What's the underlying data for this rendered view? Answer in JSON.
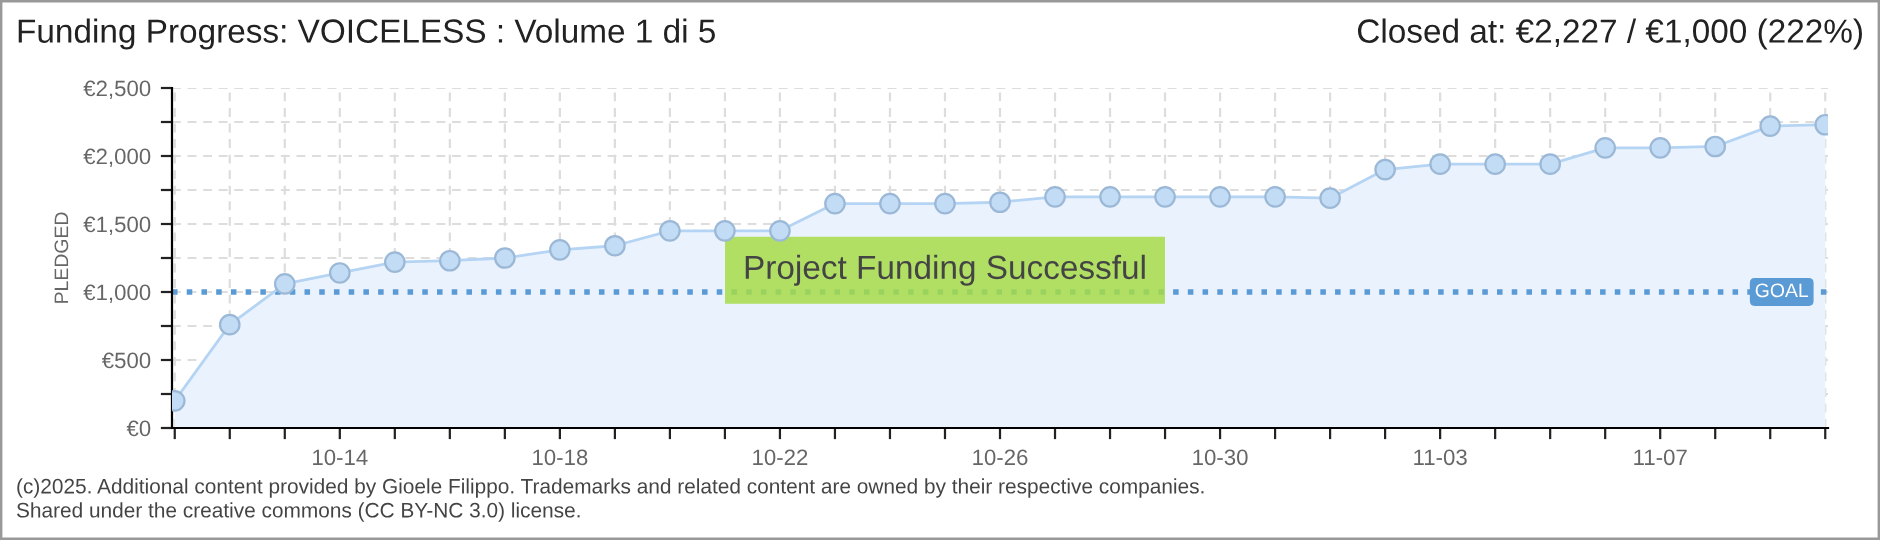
{
  "chart_data": {
    "type": "area",
    "title": "Funding Progress: VOICELESS : Volume 1 di 5",
    "subtitle": "Closed at: €2,227 / €1,000 (222%)",
    "ylabel": "PLEDGED",
    "categories": [
      null,
      null,
      null,
      "10-14",
      null,
      null,
      null,
      "10-18",
      null,
      null,
      null,
      "10-22",
      null,
      null,
      null,
      "10-26",
      null,
      null,
      null,
      "10-30",
      null,
      null,
      null,
      "11-03",
      null,
      null,
      null,
      "11-07",
      null,
      null,
      null
    ],
    "series": [
      {
        "color": "#b5d4f4",
        "values": [
          200,
          760,
          1060,
          1140,
          1220,
          1230,
          1250,
          1310,
          1340,
          1450,
          1450,
          1450,
          1650,
          1650,
          1650,
          1660,
          1700,
          1700,
          1700,
          1700,
          1700,
          1690,
          1900,
          1940,
          1940,
          1940,
          2060,
          2060,
          2070,
          2220,
          2230
        ]
      }
    ],
    "ylim": [
      0,
      2500
    ],
    "yticks": [
      {
        "value": 0,
        "label": "€0"
      },
      {
        "value": 250,
        "label": null
      },
      {
        "value": 500,
        "label": "€500"
      },
      {
        "value": 750,
        "label": null
      },
      {
        "value": 1000,
        "label": "€1,000"
      },
      {
        "value": 1250,
        "label": null
      },
      {
        "value": 1500,
        "label": "€1,500"
      },
      {
        "value": 1750,
        "label": null
      },
      {
        "value": 2000,
        "label": "€2,000"
      },
      {
        "value": 2250,
        "label": null
      },
      {
        "value": 2500,
        "label": "€2,500"
      }
    ],
    "ref_lines": [
      {
        "axis": "y",
        "value": 1000,
        "label": "GOAL",
        "color": "#5b9bd5",
        "line_style": "dotted"
      }
    ],
    "annotations": [
      "Project Funding Successful",
      "(c)2025. Additional content provided by Gioele Filippo. Trademarks and related content are owned by their respective companies.",
      "Shared under the creative commons (CC BY-NC 3.0) license."
    ],
    "marker": "circle",
    "grid": true,
    "legend": false
  }
}
